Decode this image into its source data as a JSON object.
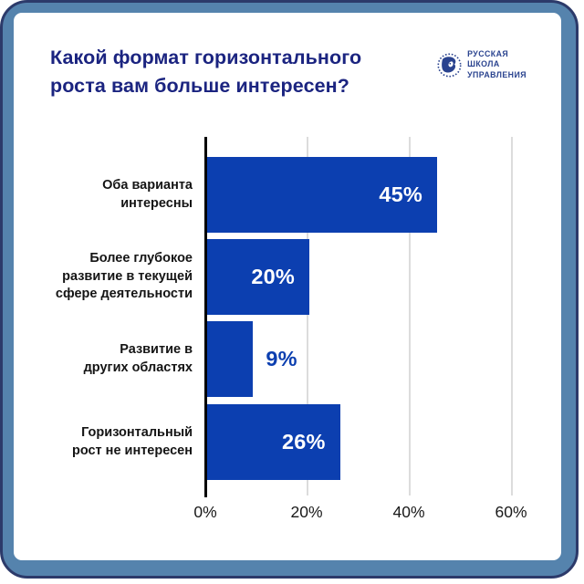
{
  "header": {
    "title": "Какой формат горизонтального\nроста вам больше интересен?"
  },
  "logo": {
    "name": "Русская школа управления",
    "lines": [
      "РУССКАЯ",
      "ШКОЛА",
      "УПРАВЛЕНИЯ"
    ],
    "color": "#2a438f"
  },
  "chart_data": {
    "type": "bar",
    "orientation": "horizontal",
    "title": "Какой формат горизонтального роста вам больше интересен?",
    "categories": [
      "Оба варианта интересны",
      "Более глубокое развитие в текущей сфере деятельности",
      "Развитие в других областях",
      "Горизонтальный рост не интересен"
    ],
    "categories_display": [
      "Оба варианта\nинтересны",
      "Более глубокое\nразвитие в текущей\nсфере деятельности",
      "Развитие в\nдругих областях",
      "Горизонтальный\nрост не интересен"
    ],
    "values": [
      45,
      20,
      9,
      26
    ],
    "value_labels": [
      "45%",
      "20%",
      "9%",
      "26%"
    ],
    "xlim": [
      0,
      60
    ],
    "xticks": [
      0,
      20,
      40,
      60
    ],
    "xtick_labels": [
      "0%",
      "20%",
      "40%",
      "60%"
    ],
    "grid": "vertical-only",
    "legend": "none",
    "bar_color": "#0c3fb0",
    "value_label_inside_color": "#ffffff",
    "value_label_outside_color": "#0c3fb0",
    "axis_color": "#000000",
    "gridline_color": "#dcdcdc",
    "background_color": "#ffffff",
    "frame_color": "#5583ad"
  }
}
